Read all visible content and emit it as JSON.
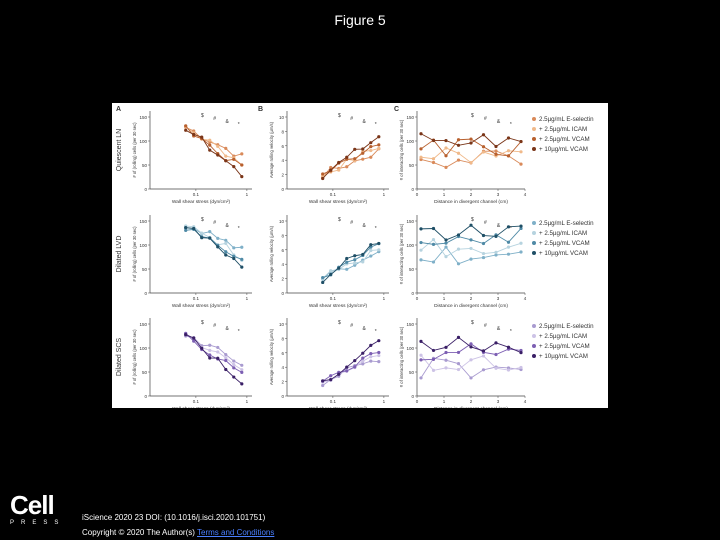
{
  "slide": {
    "title": "Figure 5"
  },
  "figure": {
    "panel_letters": [
      "A",
      "B",
      "C"
    ],
    "row_labels": [
      "Quiescent LN",
      "Dilated LVD",
      "Dilated SCS"
    ],
    "col_a": {
      "ylabel": "# of (rolling) cells (per 30 sec)",
      "xlabel": "Wall shear stress (dyn/cm²)",
      "xticks": [
        "0.1",
        "1"
      ],
      "yticks_rows": [
        [
          "0",
          "50",
          "100",
          "150"
        ],
        [
          "0",
          "50",
          "100",
          "150"
        ],
        [
          "0",
          "50",
          "100",
          "150"
        ]
      ]
    },
    "col_b": {
      "ylabel": "Average rolling velocity (µm/s)",
      "xlabel": "Wall shear stress (dyn/cm²)",
      "xticks": [
        "0.1",
        "1"
      ],
      "yticks_rows": [
        [
          "0",
          "2",
          "4",
          "6",
          "8",
          "10"
        ],
        [
          "0",
          "2",
          "4",
          "6",
          "8",
          "10"
        ],
        [
          "0",
          "2",
          "4",
          "6",
          "8",
          "10"
        ]
      ]
    },
    "col_c": {
      "ylabel": "# of interacting cells (per 30 sec)",
      "xlabel": "Distance in divergent channel (cm)",
      "xticks": [
        "0",
        "1",
        "2",
        "3",
        "4"
      ],
      "yticks_rows": [
        [
          "0",
          "50",
          "100",
          "150"
        ],
        [
          "0",
          "50",
          "100",
          "150"
        ],
        [
          "0",
          "50",
          "100",
          "150"
        ]
      ]
    },
    "significance_marks": [
      "$",
      "#",
      "&",
      "*"
    ],
    "legend_rows": [
      {
        "items": [
          {
            "label": "2.5µg/mL E-selectin",
            "color": "#d98a5a"
          },
          {
            "label": "+ 2.5µg/mL ICAM",
            "color": "#f0b98a"
          },
          {
            "label": "+ 2.5µg/mL VCAM",
            "color": "#b8602e"
          },
          {
            "label": "+ 10µg/mL VCAM",
            "color": "#7a3518"
          }
        ]
      },
      {
        "items": [
          {
            "label": "2.5µg/mL E-selectin",
            "color": "#7fb0c8"
          },
          {
            "label": "+ 2.5µg/mL ICAM",
            "color": "#b6d3df"
          },
          {
            "label": "+ 2.5µg/mL VCAM",
            "color": "#4f8aa6"
          },
          {
            "label": "+ 10µg/mL VCAM",
            "color": "#1f4f66"
          }
        ]
      },
      {
        "items": [
          {
            "label": "2.5µg/mL E-selectin",
            "color": "#a99bd0"
          },
          {
            "label": "+ 2.5µg/mL ICAM",
            "color": "#cdc3e6"
          },
          {
            "label": "+ 2.5µg/mL VCAM",
            "color": "#7d5fb3"
          },
          {
            "label": "+ 10µg/mL VCAM",
            "color": "#3a1f66"
          }
        ]
      }
    ]
  },
  "footer": {
    "logo_word": "Cell",
    "logo_sub": "PRESS",
    "citation": "iScience 2020 23 DOI: (10.1016/j.isci.2020.101751)",
    "copyright_prefix": "Copyright © 2020 The Author(s) ",
    "terms_link": "Terms and Conditions"
  }
}
